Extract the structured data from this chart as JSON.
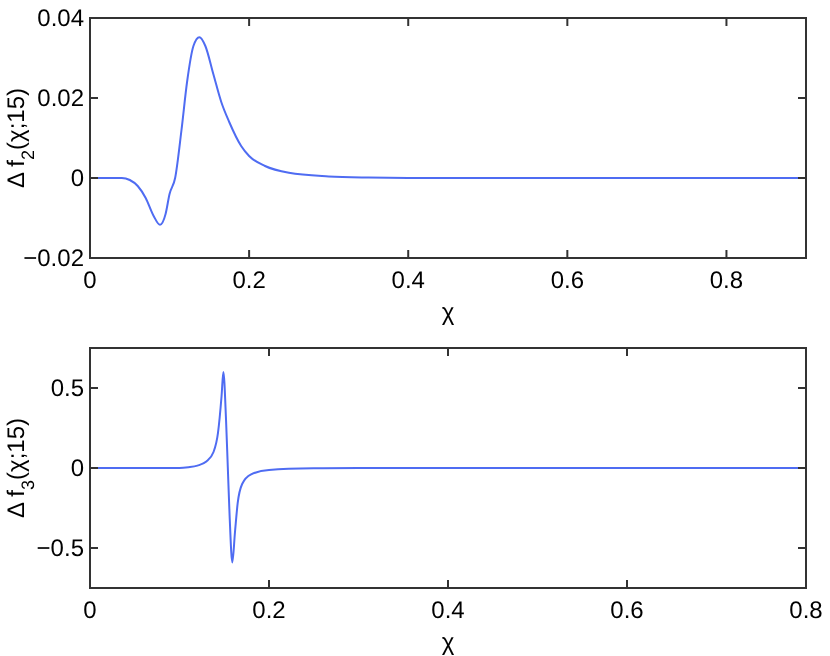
{
  "chart_data": [
    {
      "type": "line",
      "xlabel": "χ",
      "ylabel": "Δ f$_{2}$(χ;15)",
      "xlim": [
        0,
        0.9
      ],
      "ylim": [
        -0.02,
        0.04
      ],
      "xticks": [
        0,
        0.2,
        0.4,
        0.6,
        0.8
      ],
      "yticks": [
        -0.02,
        0,
        0.02,
        0.04
      ],
      "grid": false,
      "series": [
        {
          "color": "#4f6cf2",
          "x": [
            0,
            0.04,
            0.05,
            0.06,
            0.07,
            0.08,
            0.088,
            0.095,
            0.1,
            0.107,
            0.115,
            0.122,
            0.13,
            0.1375,
            0.145,
            0.155,
            0.165,
            0.175,
            0.19,
            0.2,
            0.22,
            0.25,
            0.3,
            0.35,
            0.4,
            0.9
          ],
          "values": [
            0,
            0,
            -0.0005,
            -0.002,
            -0.005,
            -0.0095,
            -0.0117,
            -0.009,
            -0.004,
            0,
            0.012,
            0.024,
            0.033,
            0.0352,
            0.033,
            0.026,
            0.019,
            0.014,
            0.008,
            0.0055,
            0.003,
            0.0013,
            0.0004,
            0.0001,
            0,
            0
          ]
        }
      ]
    },
    {
      "type": "line",
      "xlabel": "χ",
      "ylabel": "Δ f$_{3}$(χ;15)",
      "xlim": [
        0,
        0.8
      ],
      "ylim": [
        -0.75,
        0.75
      ],
      "xticks": [
        0,
        0.2,
        0.4,
        0.6,
        0.8
      ],
      "yticks": [
        -0.5,
        0,
        0.5
      ],
      "grid": false,
      "series": [
        {
          "color": "#4f6cf2",
          "x": [
            0,
            0.1,
            0.11,
            0.12,
            0.13,
            0.138,
            0.143,
            0.147,
            0.149,
            0.152,
            0.154,
            0.156,
            0.159,
            0.162,
            0.165,
            0.17,
            0.18,
            0.2,
            0.25,
            0.3,
            0.8
          ],
          "values": [
            0,
            0,
            0.005,
            0.015,
            0.04,
            0.1,
            0.22,
            0.45,
            0.6,
            0.3,
            0,
            -0.3,
            -0.59,
            -0.4,
            -0.22,
            -0.1,
            -0.04,
            -0.012,
            -0.002,
            0,
            0
          ]
        }
      ]
    }
  ]
}
